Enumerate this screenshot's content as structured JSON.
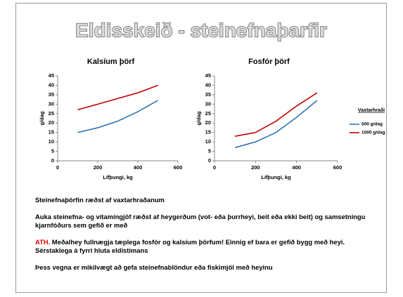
{
  "title": "Eldisskeið - steinefnaþarfir",
  "chart_data": [
    {
      "type": "line",
      "title": "Kalsíum þörf",
      "x_label": "Lífþungi, kg",
      "y_label": "g/dag",
      "x": [
        100,
        200,
        300,
        400,
        500
      ],
      "series": [
        {
          "color": "#2e75b6",
          "values": [
            15,
            17.5,
            21,
            26,
            32
          ]
        },
        {
          "color": "#c00000",
          "values": [
            27,
            30,
            33,
            36,
            40
          ]
        }
      ],
      "xlim": [
        0,
        600
      ],
      "xticks": [
        0,
        200,
        400,
        600
      ],
      "ylim": [
        0,
        45
      ],
      "yticks": [
        0,
        5,
        10,
        15,
        20,
        25,
        30,
        35,
        40,
        45
      ],
      "grid": false
    },
    {
      "type": "line",
      "title": "Fosfór þörf",
      "x_label": "Lífþungi, kg",
      "y_label": "g/dag",
      "legend_title": "Vaxtarhraði",
      "x": [
        100,
        200,
        300,
        400,
        500
      ],
      "series": [
        {
          "name": "500 g/dag",
          "color": "#2e75b6",
          "values": [
            7,
            10,
            15,
            23,
            32
          ]
        },
        {
          "name": "1000 g/dag",
          "color": "#c00000",
          "values": [
            13,
            15,
            21,
            29,
            36
          ]
        }
      ],
      "xlim": [
        0,
        600
      ],
      "xticks": [
        0,
        200,
        400,
        600
      ],
      "ylim": [
        0,
        45
      ],
      "yticks": [
        0,
        5,
        10,
        15,
        20,
        25,
        30,
        35,
        40,
        45
      ],
      "grid": false
    }
  ],
  "paragraphs": [
    [
      "Steinefnaþörfin ræðst af vaxtarhraðanum"
    ],
    [
      "Auka steinefna- og vítamíngjöf ræðst af heygerðum (vot- eða þurrheyi, beit eða ekki beit) og samsetningu kjarnfóðurs sem gefið er með"
    ],
    [
      "ATH.",
      " Meðalhey fullnægja tæplega fosfór og kalsíum þörfum! Einnig ef bara er gefið bygg með heyi. Sérstaklega á fyrri hluta eldistímans"
    ],
    [
      "Þess vegna er mikilvægt að gefa steinefnablöndur eða fiskimjöl með heyinu"
    ]
  ]
}
